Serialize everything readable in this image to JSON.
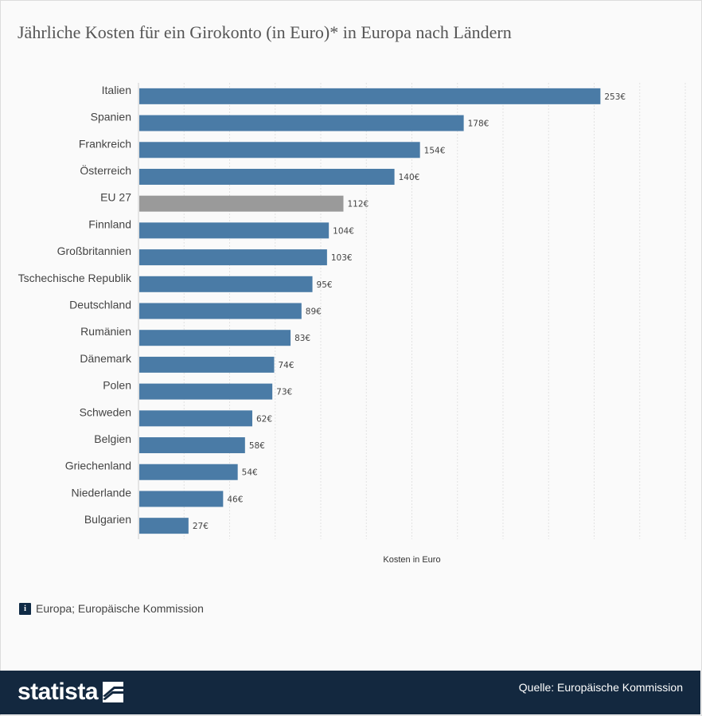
{
  "title": "Jährliche Kosten für ein Girokonto (in Euro)* in Europa nach Ländern",
  "info": {
    "icon": "info-icon",
    "glyph": "i",
    "text": "Europa; Europäische Kommission"
  },
  "footer": {
    "brand": "statista",
    "brand_icon": "statista-logo-icon",
    "source": "Quelle: Europäische Kommission"
  },
  "colors": {
    "bar": "#4a7ba6",
    "highlight": "#9a9a9a",
    "footer": "#13283f"
  },
  "chart_data": {
    "type": "bar",
    "orientation": "horizontal",
    "title": "Jährliche Kosten für ein Girokonto (in Euro)* in Europa nach Ländern",
    "xlabel": "Kosten in Euro",
    "ylabel": "",
    "xlim": [
      0,
      300
    ],
    "grid": true,
    "value_suffix": "€",
    "highlighted_category": "EU 27",
    "categories": [
      "Italien",
      "Spanien",
      "Frankreich",
      "Österreich",
      "EU 27",
      "Finnland",
      "Großbritannien",
      "Tschechische Republik",
      "Deutschland",
      "Rumänien",
      "Dänemark",
      "Polen",
      "Schweden",
      "Belgien",
      "Griechenland",
      "Niederlande",
      "Bulgarien"
    ],
    "values": [
      253,
      178,
      154,
      140,
      112,
      104,
      103,
      95,
      89,
      83,
      74,
      73,
      62,
      58,
      54,
      46,
      27
    ],
    "labels": [
      "253€",
      "178€",
      "154€",
      "140€",
      "112€",
      "104€",
      "103€",
      "95€",
      "89€",
      "83€",
      "74€",
      "73€",
      "62€",
      "58€",
      "54€",
      "46€",
      "27€"
    ]
  }
}
